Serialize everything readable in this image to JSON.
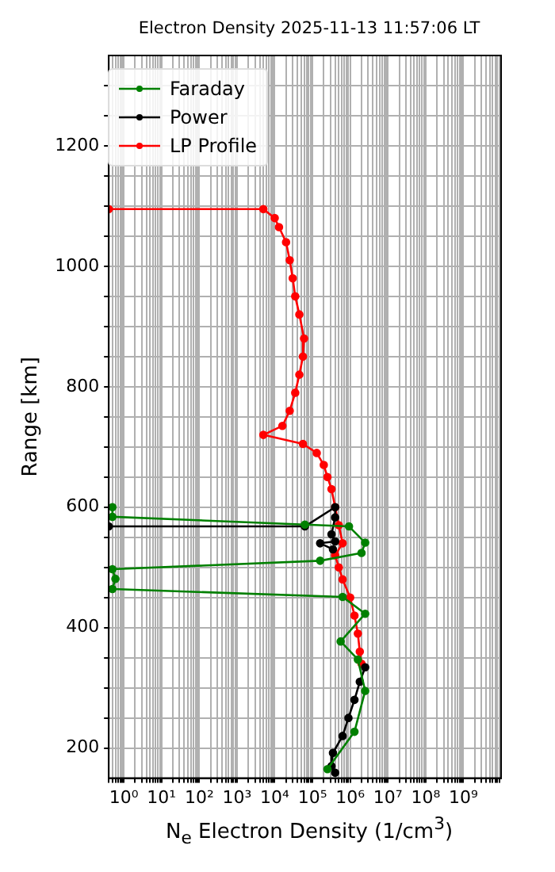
{
  "chart_data": {
    "type": "line",
    "title": "Electron Density 2025-11-13 11:57:06 LT",
    "xlabel": "N$_{e}$ Electron Density (1/cm$^{3}$)",
    "ylabel": "Range [km]",
    "log": "x",
    "grid": true,
    "legend": "top left",
    "marker": "circle",
    "line_style": "solid",
    "xlim": [
      0.4,
      10000000000
    ],
    "ylim": [
      150,
      1350
    ],
    "xticks": [
      {
        "value": 0.4,
        "label": null
      },
      {
        "value": 0.5,
        "label": null
      },
      {
        "value": 0.6,
        "label": null
      },
      {
        "value": 0.7,
        "label": null
      },
      {
        "value": 0.8,
        "label": null
      },
      {
        "value": 0.9,
        "label": null
      },
      {
        "value": 1,
        "label": "10⁰"
      },
      {
        "value": 2,
        "label": null
      },
      {
        "value": 3,
        "label": null
      },
      {
        "value": 4,
        "label": null
      },
      {
        "value": 5,
        "label": null
      },
      {
        "value": 6,
        "label": null
      },
      {
        "value": 7,
        "label": null
      },
      {
        "value": 8,
        "label": null
      },
      {
        "value": 9,
        "label": null
      },
      {
        "value": 10,
        "label": "10¹"
      },
      {
        "value": 20,
        "label": null
      },
      {
        "value": 30,
        "label": null
      },
      {
        "value": 40,
        "label": null
      },
      {
        "value": 50,
        "label": null
      },
      {
        "value": 60,
        "label": null
      },
      {
        "value": 70,
        "label": null
      },
      {
        "value": 80,
        "label": null
      },
      {
        "value": 90,
        "label": null
      },
      {
        "value": 100,
        "label": "10²"
      },
      {
        "value": 200,
        "label": null
      },
      {
        "value": 300,
        "label": null
      },
      {
        "value": 400,
        "label": null
      },
      {
        "value": 500,
        "label": null
      },
      {
        "value": 600,
        "label": null
      },
      {
        "value": 700,
        "label": null
      },
      {
        "value": 800,
        "label": null
      },
      {
        "value": 900,
        "label": null
      },
      {
        "value": 1000,
        "label": "10³"
      },
      {
        "value": 2000,
        "label": null
      },
      {
        "value": 3000,
        "label": null
      },
      {
        "value": 4000,
        "label": null
      },
      {
        "value": 5000,
        "label": null
      },
      {
        "value": 6000,
        "label": null
      },
      {
        "value": 7000,
        "label": null
      },
      {
        "value": 8000,
        "label": null
      },
      {
        "value": 9000,
        "label": null
      },
      {
        "value": 10000,
        "label": "10⁴"
      },
      {
        "value": 20000,
        "label": null
      },
      {
        "value": 30000,
        "label": null
      },
      {
        "value": 40000,
        "label": null
      },
      {
        "value": 50000,
        "label": null
      },
      {
        "value": 60000,
        "label": null
      },
      {
        "value": 70000,
        "label": null
      },
      {
        "value": 80000,
        "label": null
      },
      {
        "value": 90000,
        "label": null
      },
      {
        "value": 100000,
        "label": "10⁵"
      },
      {
        "value": 200000,
        "label": null
      },
      {
        "value": 300000,
        "label": null
      },
      {
        "value": 400000,
        "label": null
      },
      {
        "value": 500000,
        "label": null
      },
      {
        "value": 600000,
        "label": null
      },
      {
        "value": 700000,
        "label": null
      },
      {
        "value": 800000,
        "label": null
      },
      {
        "value": 900000,
        "label": null
      },
      {
        "value": 1000000,
        "label": "10⁶"
      },
      {
        "value": 2000000,
        "label": null
      },
      {
        "value": 3000000,
        "label": null
      },
      {
        "value": 4000000,
        "label": null
      },
      {
        "value": 5000000,
        "label": null
      },
      {
        "value": 6000000,
        "label": null
      },
      {
        "value": 7000000,
        "label": null
      },
      {
        "value": 8000000,
        "label": null
      },
      {
        "value": 9000000,
        "label": null
      },
      {
        "value": 10000000,
        "label": "10⁷"
      },
      {
        "value": 20000000,
        "label": null
      },
      {
        "value": 30000000,
        "label": null
      },
      {
        "value": 40000000,
        "label": null
      },
      {
        "value": 50000000,
        "label": null
      },
      {
        "value": 60000000,
        "label": null
      },
      {
        "value": 70000000,
        "label": null
      },
      {
        "value": 80000000,
        "label": null
      },
      {
        "value": 90000000,
        "label": null
      },
      {
        "value": 100000000,
        "label": "10⁸"
      },
      {
        "value": 200000000,
        "label": null
      },
      {
        "value": 300000000,
        "label": null
      },
      {
        "value": 400000000,
        "label": null
      },
      {
        "value": 500000000,
        "label": null
      },
      {
        "value": 600000000,
        "label": null
      },
      {
        "value": 700000000,
        "label": null
      },
      {
        "value": 800000000,
        "label": null
      },
      {
        "value": 900000000,
        "label": null
      },
      {
        "value": 1000000000,
        "label": "10⁹"
      },
      {
        "value": 2000000000,
        "label": null
      },
      {
        "value": 3000000000,
        "label": null
      },
      {
        "value": 4000000000,
        "label": null
      },
      {
        "value": 5000000000,
        "label": null
      },
      {
        "value": 6000000000,
        "label": null
      },
      {
        "value": 7000000000,
        "label": null
      },
      {
        "value": 8000000000,
        "label": null
      },
      {
        "value": 9000000000,
        "label": null
      }
    ],
    "yticks": [
      200,
      {
        "value": 250,
        "label": null
      },
      {
        "value": 300,
        "label": null
      },
      {
        "value": 350,
        "label": null
      },
      400,
      {
        "value": 450,
        "label": null
      },
      {
        "value": 500,
        "label": null
      },
      {
        "value": 550,
        "label": null
      },
      600,
      {
        "value": 650,
        "label": null
      },
      {
        "value": 700,
        "label": null
      },
      {
        "value": 750,
        "label": null
      },
      800,
      {
        "value": 850,
        "label": null
      },
      {
        "value": 900,
        "label": null
      },
      {
        "value": 950,
        "label": null
      },
      1000,
      {
        "value": 1050,
        "label": null
      },
      {
        "value": 1100,
        "label": null
      },
      {
        "value": 1150,
        "label": null
      },
      1200,
      {
        "value": 1250,
        "label": null
      },
      {
        "value": 1300,
        "label": null
      }
    ],
    "series": [
      {
        "name": "Faraday",
        "color": "#008000",
        "x": [
          0.5,
          0.5,
          63000,
          930000,
          2500000,
          2000000,
          160000,
          0.5,
          0.6,
          0.5,
          630000,
          2500000,
          560000,
          1600000,
          2500000,
          1300000,
          250000
        ],
        "values": [
          600,
          584,
          571,
          568,
          541,
          524,
          511,
          497,
          481,
          464,
          451,
          423,
          377,
          347,
          295,
          227,
          165
        ]
      },
      {
        "name": "Power",
        "color": "#000000",
        "x": [
          0.4,
          63000,
          400000,
          400000,
          320000,
          400000,
          160000,
          350000,
          null,
          2500000,
          1800000,
          1300000,
          900000,
          630000,
          350000,
          320000,
          400000
        ],
        "values": [
          568,
          568,
          600,
          583,
          555,
          543,
          540,
          530,
          null,
          334,
          310,
          280,
          250,
          220,
          192,
          170,
          159
        ]
      },
      {
        "name": "LP Profile",
        "color": "#ff0000",
        "x": [
          0.4,
          5000,
          10000,
          13000,
          20000,
          25000,
          30000,
          35000,
          45000,
          60000,
          56000,
          45000,
          35000,
          25000,
          16000,
          5000,
          56000,
          130000,
          200000,
          250000,
          320000,
          400000,
          500000,
          630000,
          400000,
          500000,
          630000,
          1000000,
          1300000,
          1600000,
          1800000,
          2000000
        ],
        "values": [
          1095,
          1095,
          1080,
          1065,
          1040,
          1010,
          980,
          950,
          920,
          880,
          850,
          820,
          790,
          760,
          735,
          720,
          705,
          690,
          670,
          650,
          630,
          600,
          570,
          540,
          520,
          500,
          480,
          450,
          420,
          390,
          360,
          340
        ]
      }
    ]
  }
}
